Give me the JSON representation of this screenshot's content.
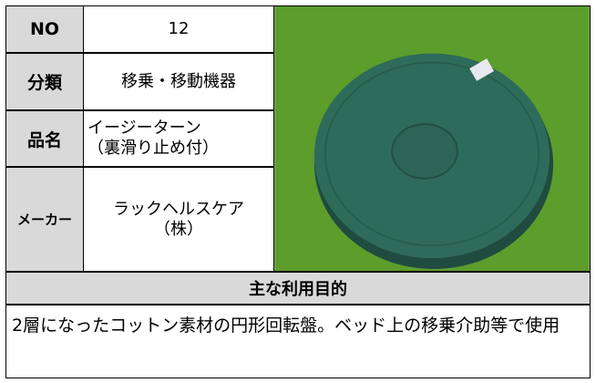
{
  "rows": [
    {
      "label": "NO",
      "lines": [
        "12"
      ]
    },
    {
      "label": "分類",
      "lines": [
        "移乗・移動機器"
      ]
    },
    {
      "label": "品名",
      "lines": [
        "イージーターン",
        "（裏滑り止め付）"
      ]
    },
    {
      "label": "メーカー",
      "lines": [
        "ラックヘルスケア",
        "（株）"
      ]
    }
  ],
  "section_title": "主な利用目的",
  "description": "2層になったコットン素材の円形回転盤。ベッド上の移乗介助等で使用"
}
